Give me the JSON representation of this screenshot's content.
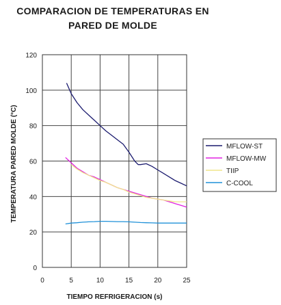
{
  "chart_data": {
    "type": "line",
    "title_line1": "COMPARACION DE TEMPERATURAS EN",
    "title_line2": "PARED DE MOLDE",
    "xlabel": "TIEMPO REFRIGERACION (s)",
    "ylabel": "TEMPERATURA PARED MOLDE (°C)",
    "xlim": [
      0,
      25
    ],
    "ylim": [
      0,
      120
    ],
    "x_ticks": [
      0,
      5,
      10,
      15,
      20,
      25
    ],
    "y_ticks": [
      0,
      20,
      40,
      60,
      80,
      100,
      120
    ],
    "grid": true,
    "legend_position": "right",
    "series": [
      {
        "name": "MFLOW-ST",
        "color": "#1a1a6e",
        "points": [
          [
            4.2,
            104
          ],
          [
            5,
            98
          ],
          [
            6,
            93
          ],
          [
            7,
            89
          ],
          [
            8,
            86
          ],
          [
            9,
            83
          ],
          [
            10,
            80
          ],
          [
            11,
            77
          ],
          [
            12,
            74.5
          ],
          [
            13,
            72
          ],
          [
            14,
            69.5
          ],
          [
            15,
            65
          ],
          [
            16,
            60
          ],
          [
            16.6,
            58
          ],
          [
            17,
            58
          ],
          [
            18,
            58.5
          ],
          [
            19,
            57
          ],
          [
            20,
            55
          ],
          [
            21,
            53
          ],
          [
            22,
            51
          ],
          [
            23,
            49
          ],
          [
            24,
            47.5
          ],
          [
            25,
            46
          ]
        ]
      },
      {
        "name": "MFLOW-MW",
        "color": "#e020e0",
        "points": [
          [
            4,
            62
          ],
          [
            5,
            59
          ],
          [
            6,
            56
          ],
          [
            7,
            54
          ],
          [
            8,
            52
          ],
          [
            9,
            51
          ],
          [
            10,
            49.5
          ],
          [
            11,
            48
          ],
          [
            12,
            46.5
          ],
          [
            13,
            45
          ],
          [
            14,
            44
          ],
          [
            15,
            43
          ],
          [
            16,
            42
          ],
          [
            17,
            41
          ],
          [
            18,
            40
          ],
          [
            19,
            39
          ],
          [
            20,
            38.5
          ],
          [
            21,
            38
          ],
          [
            22,
            37
          ],
          [
            23,
            36
          ],
          [
            24,
            35
          ],
          [
            25,
            34
          ]
        ]
      },
      {
        "name": "TIIP",
        "color": "#f0e68c",
        "points": [
          [
            5,
            58
          ],
          [
            6,
            55.5
          ],
          [
            7,
            53.5
          ],
          [
            8,
            52
          ],
          [
            9,
            50.5
          ],
          [
            10,
            49
          ],
          [
            11,
            48
          ],
          [
            12,
            46.5
          ],
          [
            13,
            45
          ],
          [
            14,
            44
          ],
          [
            15,
            42.5
          ],
          [
            16,
            41.5
          ],
          [
            17,
            40.5
          ],
          [
            18,
            39.5
          ],
          [
            19,
            39
          ],
          [
            20,
            38.5
          ],
          [
            21,
            38
          ],
          [
            22,
            37.5
          ],
          [
            23,
            37
          ],
          [
            24,
            37
          ],
          [
            25,
            37
          ]
        ]
      },
      {
        "name": "C-COOL",
        "color": "#1e90d8",
        "points": [
          [
            4,
            24.5
          ],
          [
            5,
            25
          ],
          [
            6,
            25.2
          ],
          [
            7,
            25.5
          ],
          [
            8,
            25.7
          ],
          [
            9,
            25.8
          ],
          [
            10,
            26
          ],
          [
            11,
            26
          ],
          [
            12,
            25.9
          ],
          [
            13,
            25.8
          ],
          [
            14,
            25.8
          ],
          [
            15,
            25.7
          ],
          [
            16,
            25.5
          ],
          [
            17,
            25.3
          ],
          [
            18,
            25.2
          ],
          [
            19,
            25.1
          ],
          [
            20,
            25
          ],
          [
            21,
            25
          ],
          [
            22,
            25
          ],
          [
            23,
            25
          ],
          [
            24,
            25
          ],
          [
            25,
            25
          ]
        ]
      }
    ]
  }
}
